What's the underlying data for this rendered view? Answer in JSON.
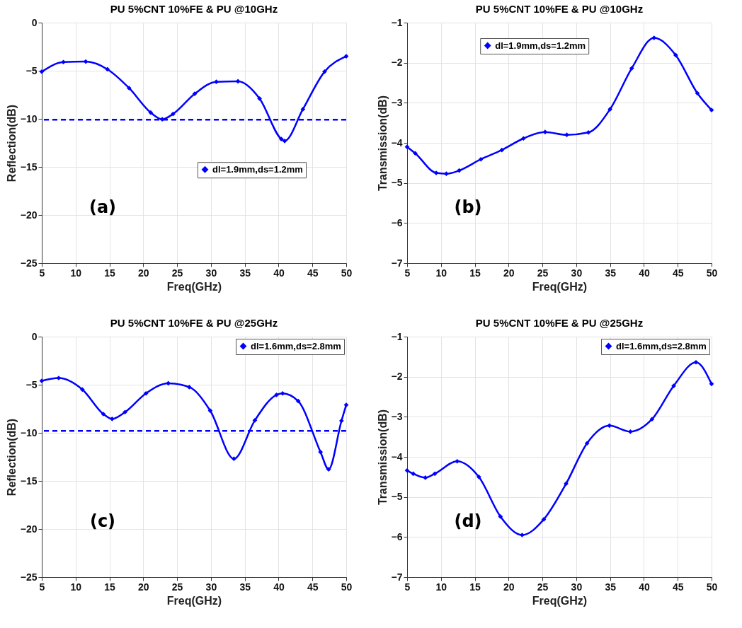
{
  "chart_data": [
    {
      "type": "line",
      "title": "PU 5%CNT 10%FE & PU @10GHz",
      "xlabel": "Freq(GHz)",
      "ylabel": "Reflection(dB)",
      "xlim": [
        5,
        50
      ],
      "xticks": [
        5,
        10,
        15,
        20,
        25,
        30,
        35,
        40,
        45,
        50
      ],
      "ylim": [
        -25,
        0
      ],
      "yticks": [
        -25,
        -20,
        -15,
        -10,
        -5,
        0
      ],
      "grid": true,
      "legend": "right",
      "marker": "diamond",
      "line_style": "solid",
      "annotations": [
        "(a)"
      ],
      "ref_lines": [
        {
          "axis": "y",
          "value": -10.1,
          "color": "#0000ff",
          "line_style": "dashed"
        }
      ],
      "series": [
        {
          "name": "dl=1.9mm,ds=1.2mm",
          "color": "#0000ff",
          "x": [
            5,
            8.2,
            11.5,
            14.7,
            17.9,
            21.1,
            22.8,
            24.4,
            27.6,
            30.8,
            34,
            37.2,
            40.4,
            40.9,
            43.6,
            46.8,
            50
          ],
          "values": [
            -5.1,
            -4.1,
            -4.05,
            -4.85,
            -6.8,
            -9.35,
            -10.05,
            -9.5,
            -7.4,
            -6.15,
            -6.1,
            -7.9,
            -12.1,
            -12.3,
            -9,
            -5.1,
            -3.5
          ]
        }
      ]
    },
    {
      "type": "line",
      "title": "PU 5%CNT 10%FE & PU @10GHz",
      "xlabel": "Freq(GHz)",
      "ylabel": "Transmission(dB)",
      "xlim": [
        5,
        50
      ],
      "xticks": [
        5,
        10,
        15,
        20,
        25,
        30,
        35,
        40,
        45,
        50
      ],
      "ylim": [
        -7,
        -1
      ],
      "yticks": [
        -7,
        -6,
        -5,
        -4,
        -3,
        -2,
        -1
      ],
      "grid": true,
      "legend": "top",
      "marker": "diamond",
      "line_style": "solid",
      "annotations": [
        "(b)"
      ],
      "series": [
        {
          "name": "dl=1.9mm,ds=1.2mm",
          "color": "#0000ff",
          "x": [
            5,
            6.2,
            9.3,
            10.8,
            12.7,
            15.9,
            19,
            22.2,
            25.4,
            28.6,
            31.8,
            35,
            38.2,
            41.5,
            44.7,
            47.9,
            50
          ],
          "values": [
            -4.1,
            -4.26,
            -4.75,
            -4.77,
            -4.69,
            -4.41,
            -4.18,
            -3.89,
            -3.73,
            -3.8,
            -3.74,
            -3.16,
            -2.14,
            -1.38,
            -1.81,
            -2.76,
            -3.18
          ]
        }
      ]
    },
    {
      "type": "line",
      "title": "PU 5%CNT 10%FE & PU @25GHz",
      "xlabel": "Freq(GHz)",
      "ylabel": "Reflection(dB)",
      "xlim": [
        5,
        50
      ],
      "xticks": [
        5,
        10,
        15,
        20,
        25,
        30,
        35,
        40,
        45,
        50
      ],
      "ylim": [
        -25,
        0
      ],
      "yticks": [
        -25,
        -20,
        -15,
        -10,
        -5,
        0
      ],
      "grid": true,
      "legend": "top right",
      "marker": "diamond",
      "line_style": "solid",
      "annotations": [
        "(c)"
      ],
      "ref_lines": [
        {
          "axis": "y",
          "value": -9.8,
          "color": "#0000ff",
          "line_style": "dashed"
        }
      ],
      "series": [
        {
          "name": "dl=1.6mm,ds=2.8mm",
          "color": "#0000ff",
          "x": [
            5,
            7.5,
            11,
            14.1,
            15.4,
            17.3,
            20.4,
            23.7,
            26.8,
            29.9,
            33.4,
            36.5,
            39.7,
            40.6,
            42.9,
            46.2,
            47.4,
            49.3,
            50
          ],
          "values": [
            -4.6,
            -4.3,
            -5.5,
            -8.05,
            -8.55,
            -7.85,
            -5.9,
            -4.85,
            -5.25,
            -7.7,
            -12.7,
            -8.7,
            -6.05,
            -5.9,
            -6.7,
            -12,
            -13.8,
            -8.75,
            -7.1
          ]
        }
      ]
    },
    {
      "type": "line",
      "title": "PU 5%CNT 10%FE & PU @25GHz",
      "xlabel": "Freq(GHz)",
      "ylabel": "Transmission(dB)",
      "xlim": [
        5,
        50
      ],
      "xticks": [
        5,
        10,
        15,
        20,
        25,
        30,
        35,
        40,
        45,
        50
      ],
      "ylim": [
        -7,
        -1
      ],
      "yticks": [
        -7,
        -6,
        -5,
        -4,
        -3,
        -2,
        -1
      ],
      "grid": true,
      "legend": "top right",
      "marker": "diamond",
      "line_style": "solid",
      "annotations": [
        "(d)"
      ],
      "series": [
        {
          "name": "dl=1.6mm,ds=2.8mm",
          "color": "#0000ff",
          "x": [
            5,
            5.9,
            7.7,
            9.1,
            12.4,
            15.6,
            18.8,
            22,
            25.2,
            28.5,
            31.6,
            34.9,
            38,
            41.2,
            44.4,
            47.7,
            50
          ],
          "values": [
            -4.34,
            -4.42,
            -4.52,
            -4.42,
            -4.11,
            -4.5,
            -5.49,
            -5.95,
            -5.56,
            -4.67,
            -3.66,
            -3.22,
            -3.37,
            -3.06,
            -2.23,
            -1.64,
            -2.18
          ]
        }
      ]
    }
  ]
}
